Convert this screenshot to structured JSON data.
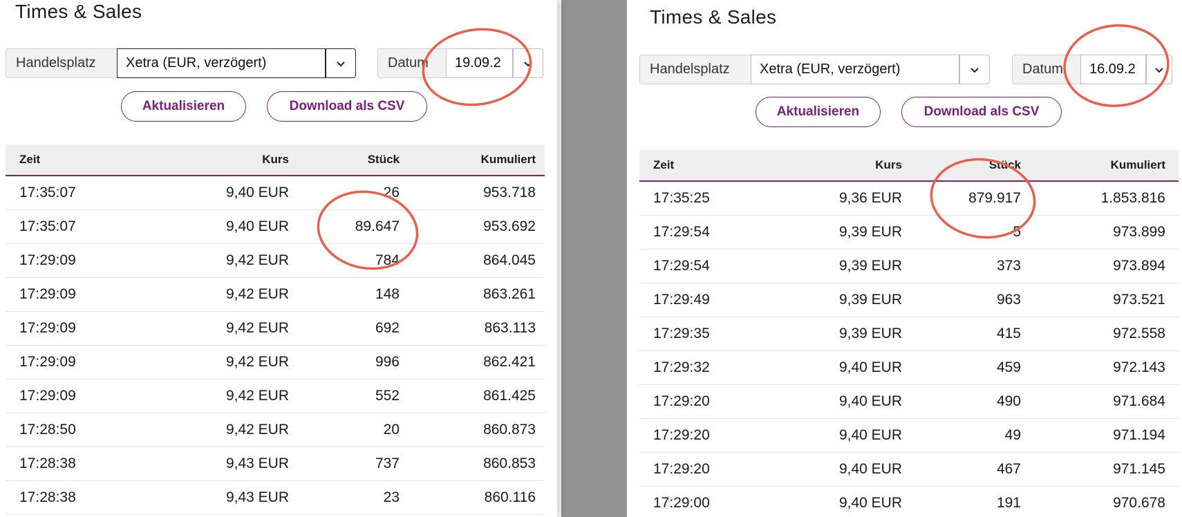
{
  "panels": [
    {
      "title": "Times & Sales",
      "venue": {
        "label": "Handelsplatz",
        "value": "Xetra (EUR, verzögert)"
      },
      "date": {
        "label": "Datum",
        "value": "19.09.2"
      },
      "buttons": {
        "refresh": "Aktualisieren",
        "download": "Download als CSV"
      },
      "columns": [
        "Zeit",
        "Kurs",
        "Stück",
        "Kumuliert"
      ],
      "rows": [
        [
          "17:35:07",
          "9,40 EUR",
          "26",
          "953.718"
        ],
        [
          "17:35:07",
          "9,40 EUR",
          "89.647",
          "953.692"
        ],
        [
          "17:29:09",
          "9,42 EUR",
          "784",
          "864.045"
        ],
        [
          "17:29:09",
          "9,42 EUR",
          "148",
          "863.261"
        ],
        [
          "17:29:09",
          "9,42 EUR",
          "692",
          "863.113"
        ],
        [
          "17:29:09",
          "9,42 EUR",
          "996",
          "862.421"
        ],
        [
          "17:29:09",
          "9,42 EUR",
          "552",
          "861.425"
        ],
        [
          "17:28:50",
          "9,42 EUR",
          "20",
          "860.873"
        ],
        [
          "17:28:38",
          "9,43 EUR",
          "737",
          "860.853"
        ],
        [
          "17:28:38",
          "9,43 EUR",
          "23",
          "860.116"
        ]
      ]
    },
    {
      "title": "Times & Sales",
      "venue": {
        "label": "Handelsplatz",
        "value": "Xetra (EUR, verzögert)"
      },
      "date": {
        "label": "Datum",
        "value": "16.09.2"
      },
      "buttons": {
        "refresh": "Aktualisieren",
        "download": "Download als CSV"
      },
      "columns": [
        "Zeit",
        "Kurs",
        "Stück",
        "Kumuliert"
      ],
      "rows": [
        [
          "17:35:25",
          "9,36 EUR",
          "879.917",
          "1.853.816"
        ],
        [
          "17:29:54",
          "9,39 EUR",
          "5",
          "973.899"
        ],
        [
          "17:29:54",
          "9,39 EUR",
          "373",
          "973.894"
        ],
        [
          "17:29:49",
          "9,39 EUR",
          "963",
          "973.521"
        ],
        [
          "17:29:35",
          "9,39 EUR",
          "415",
          "972.558"
        ],
        [
          "17:29:32",
          "9,40 EUR",
          "459",
          "972.143"
        ],
        [
          "17:29:20",
          "9,40 EUR",
          "490",
          "971.684"
        ],
        [
          "17:29:20",
          "9,40 EUR",
          "49",
          "971.194"
        ],
        [
          "17:29:20",
          "9,40 EUR",
          "467",
          "971.145"
        ],
        [
          "17:29:00",
          "9,40 EUR",
          "191",
          "970.678"
        ]
      ]
    }
  ],
  "colors": {
    "accent": "#7a1f7a",
    "annotation": "#e8604a",
    "gap": "#949494"
  }
}
